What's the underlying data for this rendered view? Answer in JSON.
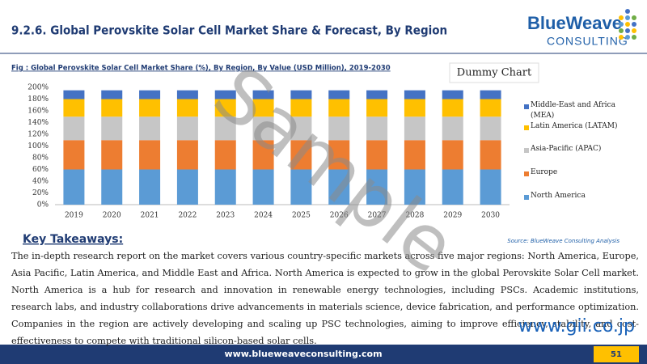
{
  "header": {
    "title": "9.2.6. Global Perovskite Solar Cell Market Share & Forecast, By Region",
    "logo_name": "BlueWeave",
    "logo_sub": "CONSULTING"
  },
  "chart_data": {
    "type": "stacked_bar",
    "caption": "Fig : Global Perovskite Solar Cell Market Share (%), By Region, By Value (USD Million), 2019-2030",
    "title": "Dummy Chart",
    "source": "Source: BlueWeave Consulting Analysis",
    "categories": [
      "2019",
      "2020",
      "2021",
      "2022",
      "2023",
      "2024",
      "2025",
      "2026",
      "2027",
      "2028",
      "2029",
      "2030"
    ],
    "series": [
      {
        "name": "North America",
        "color": "#5b9bd5",
        "values": [
          60,
          60,
          60,
          60,
          60,
          60,
          60,
          60,
          60,
          60,
          60,
          60
        ]
      },
      {
        "name": "Europe",
        "color": "#ed7d31",
        "values": [
          50,
          50,
          50,
          50,
          50,
          50,
          50,
          50,
          50,
          50,
          50,
          50
        ]
      },
      {
        "name": "Asia-Pacific (APAC)",
        "color": "#c6c6c6",
        "values": [
          40,
          40,
          40,
          40,
          40,
          40,
          40,
          40,
          40,
          40,
          40,
          40
        ]
      },
      {
        "name": "Latin America (LATAM)",
        "color": "#ffc000",
        "values": [
          30,
          30,
          30,
          30,
          30,
          30,
          30,
          30,
          30,
          30,
          30,
          30
        ]
      },
      {
        "name": "Middle-East and Africa (MEA)",
        "color": "#4472c4",
        "values": [
          15,
          15,
          15,
          15,
          15,
          15,
          15,
          15,
          15,
          15,
          15,
          15
        ]
      }
    ],
    "ylim": [
      0,
      200
    ],
    "yticks": [
      {
        "value": 0,
        "label": "0%"
      },
      {
        "value": 20,
        "label": "20%"
      },
      {
        "value": 40,
        "label": "40%"
      },
      {
        "value": 60,
        "label": "60%"
      },
      {
        "value": 80,
        "label": "80%"
      },
      {
        "value": 100,
        "label": "100%"
      },
      {
        "value": 120,
        "label": "120%"
      },
      {
        "value": 140,
        "label": "140%"
      },
      {
        "value": 160,
        "label": "160%"
      },
      {
        "value": 180,
        "label": "180%"
      },
      {
        "value": 200,
        "label": "200%"
      }
    ],
    "grid": false,
    "legend": "right"
  },
  "body": {
    "heading": "Key Takeaways:",
    "text": "The in-depth research report on the market covers various country-specific markets across five major regions: North America, Europe, Asia Pacific, Latin America, and Middle East and Africa. North America is expected to grow in the global Perovskite Solar Cell market. North America is a hub for research and innovation in renewable energy technologies, including PSCs. Academic institutions, research labs, and industry collaborations drive advancements in materials science, device fabrication, and performance optimization. Companies in the region are actively developing and scaling up PSC technologies, aiming to improve efficiency, stability, and cost-effectiveness to compete with traditional silicon-based solar cells."
  },
  "footer": {
    "url": "www.blueweaveconsulting.com",
    "page": "51"
  },
  "watermark": {
    "text": "Sample",
    "site": "www.gii.co.jp"
  }
}
